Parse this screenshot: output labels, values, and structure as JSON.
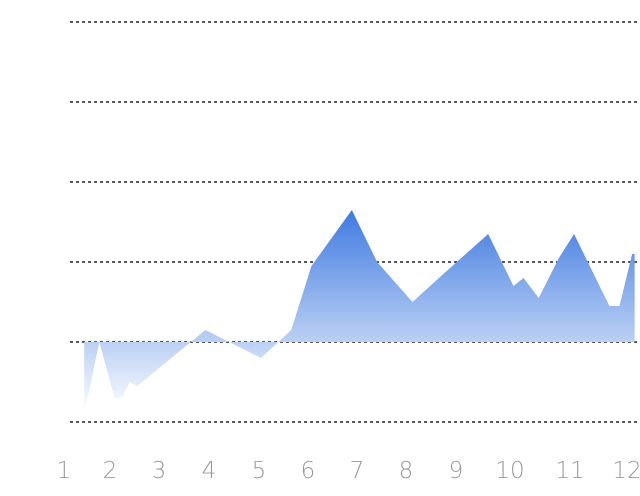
{
  "chart_data": {
    "type": "area",
    "title": "",
    "xlabel": "",
    "ylabel": "",
    "x_ticks": [
      "1",
      "2",
      "3",
      "4",
      "5",
      "6",
      "7",
      "8",
      "9",
      "10",
      "11",
      "12"
    ],
    "xlim": [
      1,
      12.3
    ],
    "ylim": [
      0,
      5
    ],
    "grid": true,
    "y_gridlines": [
      0,
      1,
      2,
      3,
      4,
      5
    ],
    "show_y_tick_labels": false,
    "fill_gradient": [
      "#3f7ae0",
      "#ffffff"
    ],
    "series": [
      {
        "x": [
          1.4,
          1.7,
          2.0,
          2.15,
          2.3,
          2.45,
          3.8,
          4.9,
          5.5,
          5.9,
          6.7,
          7.2,
          7.9,
          8.6,
          9.4,
          9.9,
          10.1,
          10.4,
          10.8,
          11.1,
          11.8,
          12.0,
          12.25,
          12.3
        ],
        "y": [
          0.1,
          1.0,
          0.3,
          0.3,
          0.5,
          0.45,
          1.15,
          0.8,
          1.15,
          1.95,
          2.65,
          2.0,
          1.5,
          1.9,
          2.35,
          1.7,
          1.8,
          1.55,
          2.05,
          2.35,
          1.45,
          1.45,
          2.1,
          2.1
        ]
      }
    ]
  }
}
